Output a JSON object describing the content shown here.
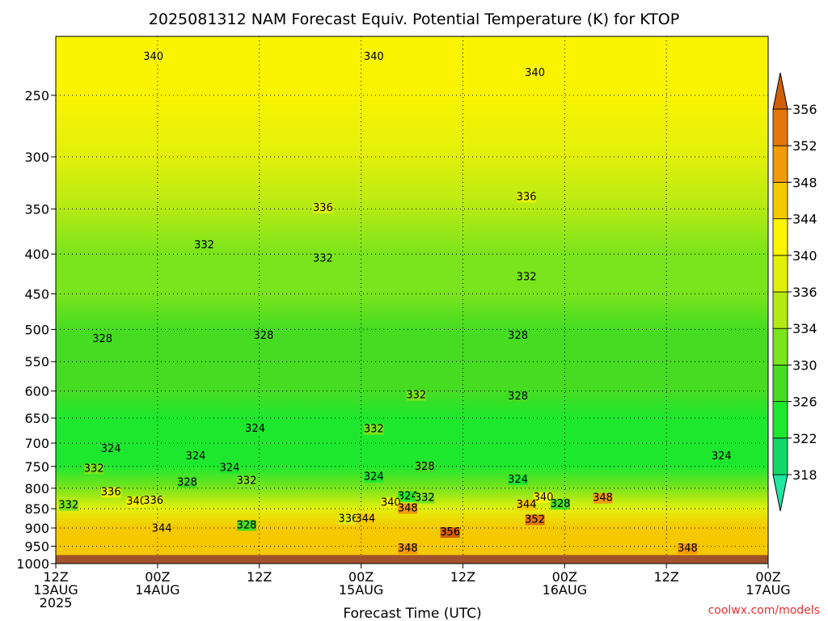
{
  "chart_data": {
    "type": "heatmap",
    "title": "2025081312 NAM Forecast Equiv. Potential Temperature (K) for KTOP",
    "xlabel": "Forecast Time (UTC)",
    "ylabel": "",
    "credit": "coolwx.com/models",
    "y_scale": "log-pressure",
    "grid": true,
    "y_ticks": [
      250,
      300,
      350,
      400,
      450,
      500,
      550,
      600,
      650,
      700,
      750,
      800,
      850,
      900,
      950,
      1000
    ],
    "y_range": [
      210,
      1000
    ],
    "x_ticks": [
      {
        "hour": 0,
        "line1": "12Z",
        "line2": "13AUG",
        "line3": "2025"
      },
      {
        "hour": 12,
        "line1": "00Z",
        "line2": "14AUG",
        "line3": ""
      },
      {
        "hour": 24,
        "line1": "12Z",
        "line2": "",
        "line3": ""
      },
      {
        "hour": 36,
        "line1": "00Z",
        "line2": "15AUG",
        "line3": ""
      },
      {
        "hour": 48,
        "line1": "12Z",
        "line2": "",
        "line3": ""
      },
      {
        "hour": 60,
        "line1": "00Z",
        "line2": "16AUG",
        "line3": ""
      },
      {
        "hour": 72,
        "line1": "12Z",
        "line2": "",
        "line3": ""
      },
      {
        "hour": 84,
        "line1": "00Z",
        "line2": "17AUG",
        "line3": ""
      }
    ],
    "x_range": [
      0,
      84
    ],
    "colorbar": {
      "levels": [
        318,
        322,
        326,
        330,
        334,
        336,
        340,
        344,
        348,
        352,
        356
      ],
      "colors": [
        "#1fe6a0",
        "#13d86a",
        "#1ee82e",
        "#45dc22",
        "#7ae41c",
        "#b4ea14",
        "#e2f00c",
        "#faf400",
        "#f6c800",
        "#f29a0a",
        "#e4760c",
        "#d05e08"
      ]
    },
    "ground_color": "#a0522d",
    "surface_pressure": 975,
    "profile": [
      {
        "p": 210,
        "theta": 342
      },
      {
        "p": 250,
        "theta": 340
      },
      {
        "p": 300,
        "theta": 337
      },
      {
        "p": 350,
        "theta": 335
      },
      {
        "p": 400,
        "theta": 333
      },
      {
        "p": 450,
        "theta": 331
      },
      {
        "p": 500,
        "theta": 329
      },
      {
        "p": 550,
        "theta": 327
      },
      {
        "p": 600,
        "theta": 326
      },
      {
        "p": 650,
        "theta": 325
      },
      {
        "p": 700,
        "theta": 324
      },
      {
        "p": 750,
        "theta": 325
      },
      {
        "p": 800,
        "theta": 330
      },
      {
        "p": 850,
        "theta": 338
      },
      {
        "p": 900,
        "theta": 344
      },
      {
        "p": 950,
        "theta": 346
      },
      {
        "p": 975,
        "theta": 347
      }
    ],
    "contour_labels": [
      {
        "text": "340",
        "hour": 11.5,
        "p": 225
      },
      {
        "text": "340",
        "hour": 37.5,
        "p": 225
      },
      {
        "text": "340",
        "hour": 56.5,
        "p": 236
      },
      {
        "text": "336",
        "hour": 31.5,
        "p": 352
      },
      {
        "text": "336",
        "hour": 55.5,
        "p": 341
      },
      {
        "text": "332",
        "hour": 17.5,
        "p": 393
      },
      {
        "text": "332",
        "hour": 31.5,
        "p": 409
      },
      {
        "text": "332",
        "hour": 55.5,
        "p": 432
      },
      {
        "text": "328",
        "hour": 5.5,
        "p": 519
      },
      {
        "text": "328",
        "hour": 24.5,
        "p": 514
      },
      {
        "text": "328",
        "hour": 54.5,
        "p": 514
      },
      {
        "text": "332",
        "hour": 42.5,
        "p": 613
      },
      {
        "text": "328",
        "hour": 54.5,
        "p": 615
      },
      {
        "text": "324",
        "hour": 23.5,
        "p": 677
      },
      {
        "text": "332",
        "hour": 37.5,
        "p": 678
      },
      {
        "text": "324",
        "hour": 6.5,
        "p": 719
      },
      {
        "text": "324",
        "hour": 16.5,
        "p": 734
      },
      {
        "text": "332",
        "hour": 4.5,
        "p": 762
      },
      {
        "text": "324",
        "hour": 20.5,
        "p": 760
      },
      {
        "text": "328",
        "hour": 43.5,
        "p": 758
      },
      {
        "text": "324",
        "hour": 78.5,
        "p": 734
      },
      {
        "text": "328",
        "hour": 15.5,
        "p": 794
      },
      {
        "text": "332",
        "hour": 22.5,
        "p": 790
      },
      {
        "text": "324",
        "hour": 37.5,
        "p": 781
      },
      {
        "text": "324",
        "hour": 54.5,
        "p": 787
      },
      {
        "text": "336",
        "hour": 6.5,
        "p": 817
      },
      {
        "text": "340",
        "hour": 9.5,
        "p": 840
      },
      {
        "text": "336",
        "hour": 11.5,
        "p": 838
      },
      {
        "text": "332",
        "hour": 1.5,
        "p": 849
      },
      {
        "text": "324",
        "hour": 41.5,
        "p": 827
      },
      {
        "text": "332",
        "hour": 43.5,
        "p": 831
      },
      {
        "text": "340",
        "hour": 57.5,
        "p": 830
      },
      {
        "text": "348",
        "hour": 64.5,
        "p": 831
      },
      {
        "text": "340",
        "hour": 39.5,
        "p": 843
      },
      {
        "text": "348",
        "hour": 41.5,
        "p": 857
      },
      {
        "text": "328",
        "hour": 59.5,
        "p": 846
      },
      {
        "text": "344",
        "hour": 55.5,
        "p": 848
      },
      {
        "text": "352",
        "hour": 56.5,
        "p": 886
      },
      {
        "text": "328",
        "hour": 22.5,
        "p": 901
      },
      {
        "text": "336",
        "hour": 34.5,
        "p": 884
      },
      {
        "text": "344",
        "hour": 36.5,
        "p": 884
      },
      {
        "text": "344",
        "hour": 12.5,
        "p": 910
      },
      {
        "text": "356",
        "hour": 46.5,
        "p": 920
      },
      {
        "text": "348",
        "hour": 41.5,
        "p": 965
      },
      {
        "text": "348",
        "hour": 74.5,
        "p": 965
      }
    ]
  }
}
